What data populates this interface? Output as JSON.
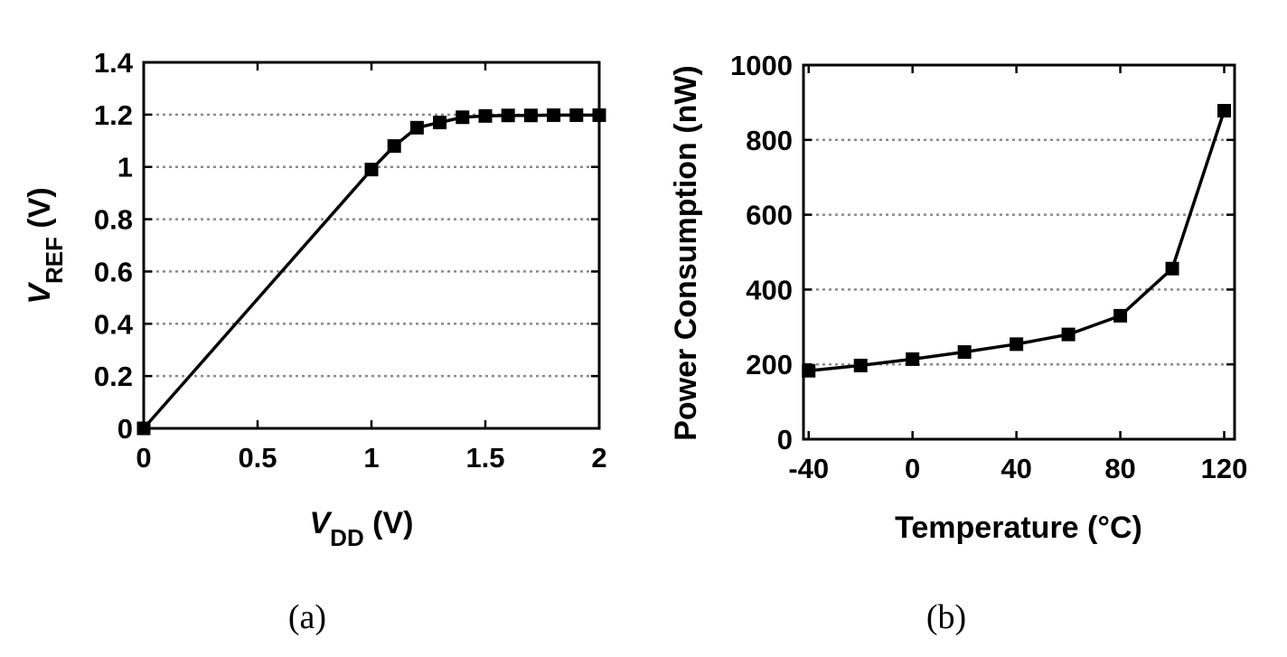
{
  "chart_data": [
    {
      "type": "line",
      "caption": "(a)",
      "xlabel": {
        "main": "V",
        "sub": "DD",
        "unit": " (V)"
      },
      "ylabel": {
        "main": "V",
        "sub": "REF",
        "unit": " (V)"
      },
      "xlim": [
        0,
        2
      ],
      "ylim": [
        0,
        1.4
      ],
      "xticks": [
        0,
        0.5,
        1,
        1.5,
        2
      ],
      "xtick_labels": [
        "0",
        "0.5",
        "1",
        "1.5",
        "2"
      ],
      "yticks": [
        0,
        0.2,
        0.4,
        0.6,
        0.8,
        1,
        1.2,
        1.4
      ],
      "ytick_labels": [
        "0",
        "0.2",
        "0.4",
        "0.6",
        "0.8",
        "1",
        "1.2",
        "1.4"
      ],
      "grid": "horizontal dotted",
      "series": [
        {
          "x": [
            0,
            1.0,
            1.1,
            1.2,
            1.3,
            1.4,
            1.5,
            1.6,
            1.7,
            1.8,
            1.9,
            2.0
          ],
          "y": [
            0,
            0.99,
            1.08,
            1.15,
            1.17,
            1.19,
            1.195,
            1.197,
            1.197,
            1.198,
            1.198,
            1.198
          ],
          "marker": "square",
          "color": "#000000"
        }
      ]
    },
    {
      "type": "line",
      "caption": "(b)",
      "xlabel": {
        "main": "Temperature (°C)"
      },
      "ylabel": {
        "main": "Power Consumption (nW)"
      },
      "xlim": [
        -42,
        124
      ],
      "ylim": [
        0,
        1000
      ],
      "xticks": [
        -40,
        0,
        40,
        80,
        120
      ],
      "xtick_labels": [
        "-40",
        "0",
        "40",
        "80",
        "120"
      ],
      "yticks": [
        0,
        200,
        400,
        600,
        800,
        1000
      ],
      "ytick_labels": [
        "0",
        "200",
        "400",
        "600",
        "800",
        "1000"
      ],
      "grid": "horizontal dotted",
      "series": [
        {
          "x": [
            -40,
            -20,
            0,
            20,
            40,
            60,
            80,
            100,
            120
          ],
          "y": [
            183,
            197,
            214,
            233,
            254,
            280,
            330,
            456,
            878
          ],
          "marker": "square",
          "color": "#000000"
        }
      ]
    }
  ]
}
